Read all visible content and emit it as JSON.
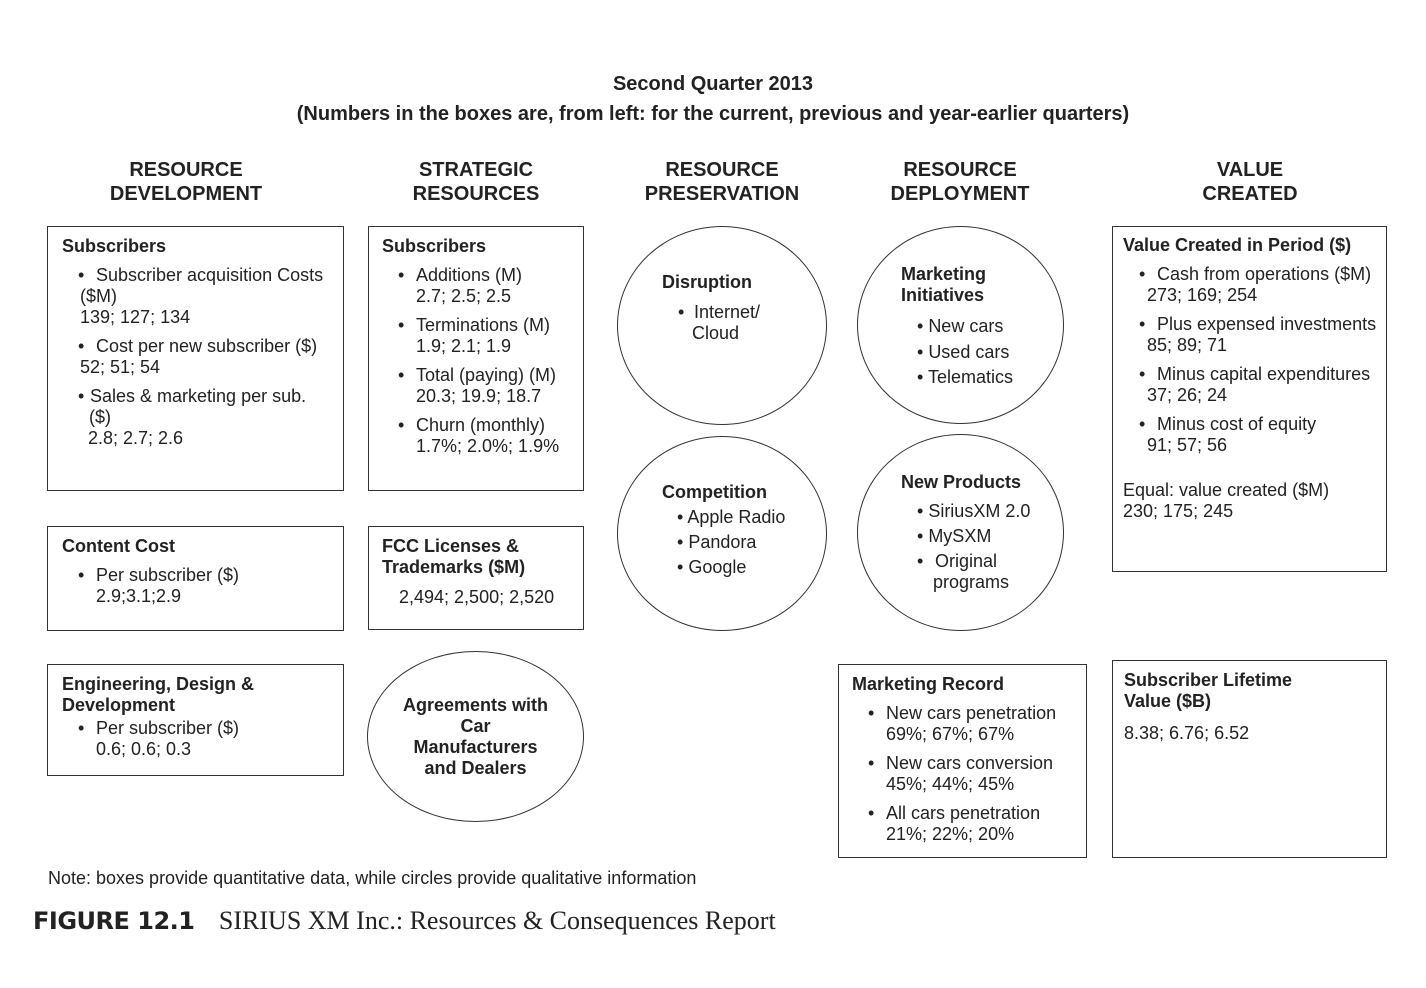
{
  "header": {
    "title": "Second Quarter 2013",
    "subtitle": "(Numbers in the boxes are, from left: for the current, previous and year-earlier quarters)"
  },
  "columns": [
    {
      "line1": "RESOURCE",
      "line2": "DEVELOPMENT"
    },
    {
      "line1": "STRATEGIC",
      "line2": "RESOURCES"
    },
    {
      "line1": "RESOURCE",
      "line2": "PRESERVATION"
    },
    {
      "line1": "RESOURCE",
      "line2": "DEPLOYMENT"
    },
    {
      "line1": "VALUE",
      "line2": "CREATED"
    }
  ],
  "dev_subscribers": {
    "title": "Subscribers",
    "items": [
      {
        "label1": "Subscriber acquisition Costs",
        "label2": "($M)",
        "values": "139; 127; 134"
      },
      {
        "label1": "Cost per new subscriber ($)",
        "values": "52; 51; 54"
      },
      {
        "label1": "Sales & marketing per sub.",
        "label2": "($)",
        "values": "2.8; 2.7; 2.6"
      }
    ]
  },
  "dev_content": {
    "title": "Content Cost",
    "items": [
      {
        "label1": "Per subscriber ($)",
        "values": "2.9;3.1;2.9"
      }
    ]
  },
  "dev_engineering": {
    "title1": "Engineering, Design &",
    "title2": "Development",
    "items": [
      {
        "label1": "Per subscriber ($)",
        "values": "0.6; 0.6; 0.3"
      }
    ]
  },
  "strat_subscribers": {
    "title": "Subscribers",
    "items": [
      {
        "label1": "Additions (M)",
        "values": "2.7; 2.5; 2.5"
      },
      {
        "label1": "Terminations (M)",
        "values": "1.9; 2.1; 1.9"
      },
      {
        "label1": "Total (paying) (M)",
        "values": "20.3; 19.9; 18.7"
      },
      {
        "label1": "Churn (monthly)",
        "values": "1.7%; 2.0%; 1.9%"
      }
    ]
  },
  "strat_fcc": {
    "title1": "FCC Licenses &",
    "title2": "Trademarks ($M)",
    "values": "2,494; 2,500; 2,520"
  },
  "strat_agreements": {
    "line1": "Agreements with",
    "line2": "Car",
    "line3": "Manufacturers",
    "line4": "and Dealers"
  },
  "pres_disruption": {
    "title": "Disruption",
    "items": [
      {
        "label1": "Internet/",
        "label2": "Cloud"
      }
    ]
  },
  "pres_competition": {
    "title": "Competition",
    "items": [
      "Apple Radio",
      "Pandora",
      "Google"
    ]
  },
  "dep_marketing": {
    "title1": "Marketing",
    "title2": "Initiatives",
    "items": [
      "New cars",
      "Used cars",
      "Telematics"
    ]
  },
  "dep_products": {
    "title": "New Products",
    "items": [
      {
        "label1": "SiriusXM 2.0"
      },
      {
        "label1": "MySXM"
      },
      {
        "label1": "Original",
        "label2": "programs"
      }
    ]
  },
  "dep_record": {
    "title": "Marketing Record",
    "items": [
      {
        "label1": "New cars penetration",
        "values": "69%; 67%; 67%"
      },
      {
        "label1": "New cars conversion",
        "values": "45%; 44%; 45%"
      },
      {
        "label1": "All cars penetration",
        "values": "21%; 22%; 20%"
      }
    ]
  },
  "val_created": {
    "title": "Value Created in Period ($)",
    "items": [
      {
        "label1": "Cash from operations ($M)",
        "values": "273; 169; 254"
      },
      {
        "label1": "Plus expensed investments",
        "values": "85; 89; 71"
      },
      {
        "label1": "Minus capital expenditures",
        "values": "37; 26; 24"
      },
      {
        "label1": "Minus cost of equity",
        "values": "91; 57; 56"
      }
    ],
    "equal_label": "Equal: value created ($M)",
    "equal_values": "230; 175; 245"
  },
  "val_lifetime": {
    "title1": "Subscriber Lifetime",
    "title2": "Value ($B)",
    "values": "8.38; 6.76; 6.52"
  },
  "footer": {
    "note": "Note: boxes provide quantitative data, while circles provide qualitative information",
    "figure_label": "FIGURE 12.1",
    "figure_title": "SIRIUS XM Inc.: Resources & Consequences Report"
  }
}
